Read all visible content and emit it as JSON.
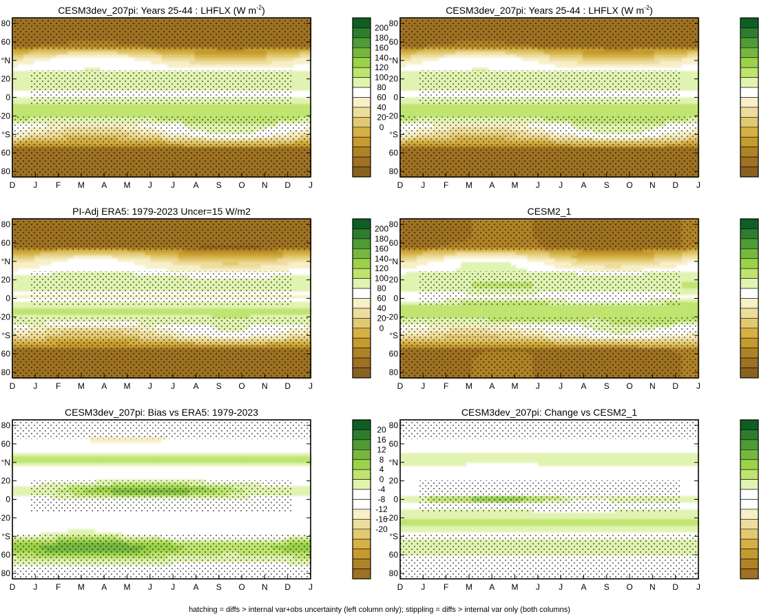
{
  "figure": {
    "footnote": "hatching = diffs > internal var+obs uncertainty (left column only); stippling = diffs > internal var only (both columns)"
  },
  "months": [
    "D",
    "J",
    "F",
    "M",
    "A",
    "M",
    "J",
    "J",
    "A",
    "S",
    "O",
    "N",
    "D",
    "J"
  ],
  "y_ticks": [
    "80",
    "60",
    "°N",
    "20",
    "0",
    "-20",
    "°S",
    "60",
    "80"
  ],
  "chart_data": [
    {
      "type": "heatmap",
      "title": "CESM3dev_207pi: Years 25-44 : LHFLX (W m",
      "title_sup": "-2",
      "title_end": ")",
      "colorbar": "abs",
      "pattern": "cesm3",
      "stipple": "abs"
    },
    {
      "type": "heatmap",
      "title": "CESM3dev_207pi: Years 25-44 : LHFLX (W m",
      "title_sup": "-2",
      "title_end": ")",
      "colorbar": "abs",
      "pattern": "cesm3",
      "stipple": "abs"
    },
    {
      "type": "heatmap",
      "title": "PI-Adj ERA5: 1979-2023 Uncer=15 W/m2",
      "title_sup": "",
      "title_end": "",
      "colorbar": "abs",
      "pattern": "era5",
      "stipple": "abs"
    },
    {
      "type": "heatmap",
      "title": "CESM2_1",
      "title_sup": "",
      "title_end": "",
      "colorbar": "abs",
      "pattern": "cesm2",
      "stipple": "abs"
    },
    {
      "type": "heatmap",
      "title": "CESM3dev_207pi: Bias vs ERA5: 1979-2023",
      "title_sup": "",
      "title_end": "",
      "colorbar": "diff",
      "pattern": "bias",
      "stipple": "diff"
    },
    {
      "type": "heatmap",
      "title": "CESM3dev_207pi: Change vs CESM2_1",
      "title_sup": "",
      "title_end": "",
      "colorbar": "diff",
      "pattern": "change",
      "stipple": "diff"
    }
  ],
  "colorbars": {
    "abs": {
      "labels": [
        "200",
        "180",
        "160",
        "140",
        "120",
        "100",
        "80",
        "60",
        "40",
        "20",
        "0"
      ],
      "colors": [
        "#0f5e24",
        "#2e7d2e",
        "#4f9b35",
        "#76b83f",
        "#9bd249",
        "#bfe46f",
        "#e0f3b0",
        "#ffffff",
        "#f7efc7",
        "#eddd9c",
        "#e2c870",
        "#d4b045",
        "#c59a2f",
        "#b08227",
        "#9e7123",
        "#8a6220"
      ]
    },
    "diff": {
      "labels": [
        "20",
        "16",
        "12",
        "8",
        "4",
        "0",
        "-4",
        "-8",
        "-12",
        "-16",
        "-20"
      ],
      "colors": [
        "#0f5e24",
        "#2e7d2e",
        "#4f9b35",
        "#76b83f",
        "#9bd249",
        "#bfe46f",
        "#e0f3b0",
        "#ffffff",
        "#ffffff",
        "#f7efc7",
        "#eddd9c",
        "#e2c870",
        "#d4b045",
        "#c59a2f",
        "#b08227",
        "#9e7123"
      ]
    }
  }
}
